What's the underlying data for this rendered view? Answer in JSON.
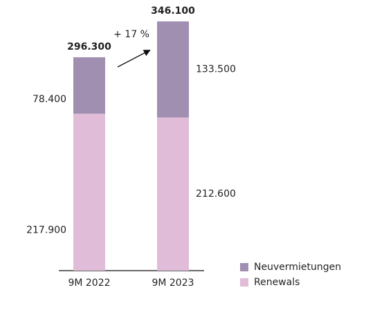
{
  "chart_data": {
    "type": "stacked-bar",
    "categories": [
      "9M 2022",
      "9M 2023"
    ],
    "series": [
      {
        "name": "Renewals",
        "color": "#e0bcd8",
        "values": [
          217900,
          212600
        ],
        "value_labels": [
          "217.900",
          "212.600"
        ]
      },
      {
        "name": "Neuvermietungen",
        "color": "#a08fb1",
        "values": [
          78400,
          133500
        ],
        "value_labels": [
          "78.400",
          "133.500"
        ]
      }
    ],
    "totals": {
      "values": [
        296300,
        346100
      ],
      "value_labels": [
        "296.300",
        "346.100"
      ]
    },
    "annotation": "+ 17 %"
  }
}
